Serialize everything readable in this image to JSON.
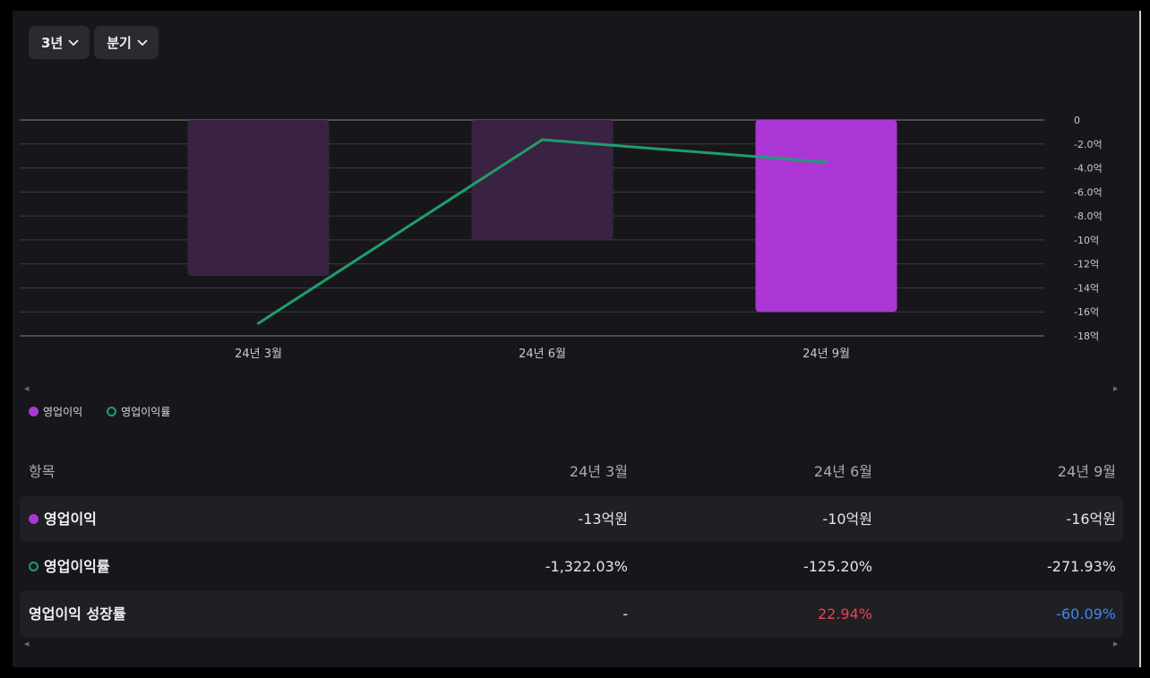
{
  "toolbar": {
    "period_label": "3년",
    "interval_label": "분기"
  },
  "colors": {
    "bar_current": "#ac35d6",
    "bar_past": "#3a2342",
    "line": "#1e9e6c",
    "positive": "#e8424f",
    "negative": "#3b8bf2"
  },
  "chart_data": {
    "type": "bar",
    "categories": [
      "24년 3월",
      "24년 6월",
      "24년 9월"
    ],
    "series": [
      {
        "name": "영업이익",
        "type": "bar",
        "unit": "억원",
        "values": [
          -13,
          -10,
          -16
        ]
      },
      {
        "name": "영업이익률",
        "type": "line",
        "unit": "%",
        "values": [
          -1322.03,
          -125.2,
          -271.93
        ]
      }
    ],
    "y_axis_right": {
      "ticks": [
        "0",
        "-2.0억",
        "-4.0억",
        "-6.0억",
        "-8.0억",
        "-10억",
        "-12억",
        "-14억",
        "-16억",
        "-18억"
      ],
      "range": [
        -18,
        0
      ]
    },
    "grid": true,
    "legend_position": "bottom-left"
  },
  "legend": [
    {
      "label": "영업이익",
      "marker": "filled-dot"
    },
    {
      "label": "영업이익률",
      "marker": "ring"
    }
  ],
  "table": {
    "header": [
      "항목",
      "24년 3월",
      "24년 6월",
      "24년 9월"
    ],
    "rows": [
      {
        "label": "영업이익",
        "values": [
          "-13억원",
          "-10억원",
          "-16억원"
        ]
      },
      {
        "label": "영업이익률",
        "values": [
          "-1,322.03%",
          "-125.20%",
          "-271.93%"
        ]
      },
      {
        "label": "영업이익 성장률",
        "values": [
          "-",
          "22.94%",
          "-60.09%"
        ]
      }
    ]
  },
  "scroll": {
    "left": "◀",
    "right": "▶"
  }
}
